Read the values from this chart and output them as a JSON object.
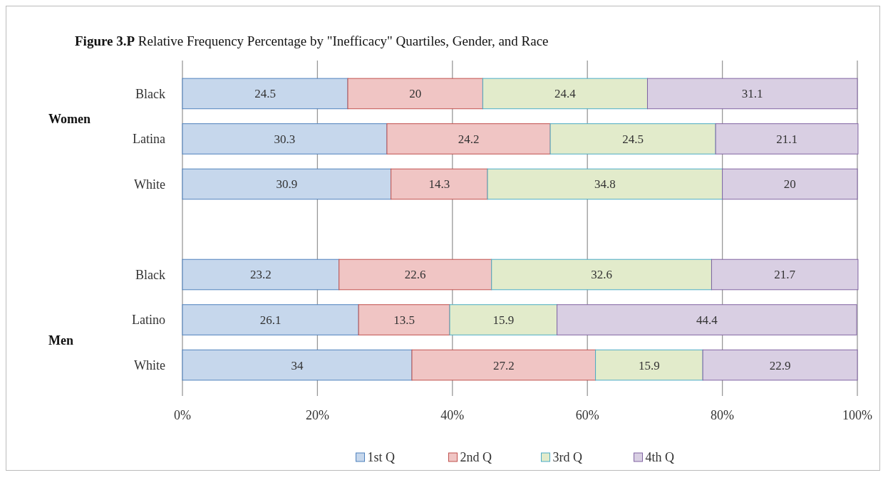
{
  "chart_data": {
    "type": "bar",
    "orientation": "horizontal",
    "stacked": true,
    "title": "Figure 3.P Relative Frequency Percentage by \"Inefficacy\" Quartiles, Gender, and Race",
    "categories": [
      "Black",
      "Latina",
      "White",
      null,
      "Black",
      "Latino",
      "White"
    ],
    "series": [
      {
        "name": "1st Q",
        "color": "#c6d7ec",
        "values": [
          24.5,
          30.3,
          30.9,
          null,
          23.2,
          26.1,
          34
        ]
      },
      {
        "name": "2nd Q",
        "color": "#f0c5c4",
        "values": [
          20,
          24.2,
          14.3,
          null,
          22.6,
          13.5,
          27.2
        ]
      },
      {
        "name": "3rd Q",
        "color": "#e2ebcb",
        "values": [
          24.4,
          24.5,
          34.8,
          null,
          32.6,
          15.9,
          15.9
        ]
      },
      {
        "name": "4th Q",
        "color": "#d9cfe3",
        "values": [
          31.1,
          21.1,
          20,
          null,
          21.7,
          44.4,
          22.9
        ]
      }
    ],
    "xlim": [
      0,
      100
    ],
    "xticks": [
      {
        "value": 0,
        "label": "0%"
      },
      {
        "value": 20,
        "label": "20%"
      },
      {
        "value": 40,
        "label": "40%"
      },
      {
        "value": 60,
        "label": "60%"
      },
      {
        "value": 80,
        "label": "80%"
      },
      {
        "value": 100,
        "label": "100%"
      }
    ],
    "annotations": [
      "Women",
      "Men"
    ],
    "grid": "x",
    "legend": "bottom",
    "data_labels": true
  }
}
